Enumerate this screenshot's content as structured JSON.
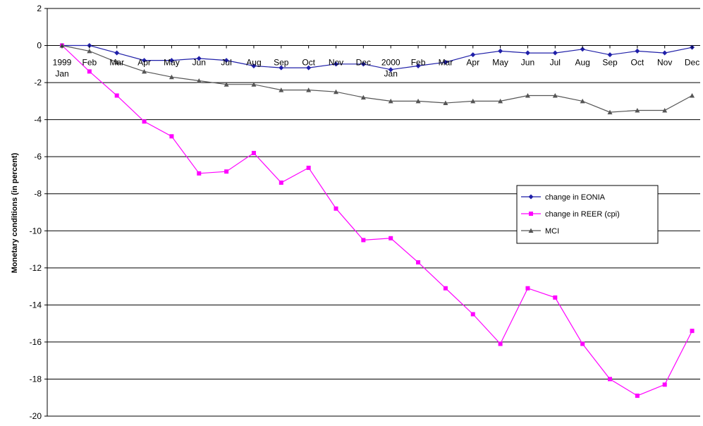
{
  "chart_data": {
    "type": "line",
    "title": "",
    "xlabel": "",
    "ylabel": "Monetary conditions (in percent)",
    "ylim": [
      -20,
      2
    ],
    "yticks": [
      2,
      0,
      -2,
      -4,
      -6,
      -8,
      -10,
      -12,
      -14,
      -16,
      -18,
      -20
    ],
    "grid": true,
    "legend_position": "right",
    "categories": [
      "Jan",
      "Feb",
      "Mar",
      "Apr",
      "May",
      "Jun",
      "Jul",
      "Aug",
      "Sep",
      "Oct",
      "Nov",
      "Dec",
      "Jan",
      "Feb",
      "Mar",
      "Apr",
      "May",
      "Jun",
      "Jul",
      "Aug",
      "Sep",
      "Oct",
      "Nov",
      "Dec"
    ],
    "year_labels": [
      {
        "index": 0,
        "label": "1999"
      },
      {
        "index": 12,
        "label": "2000"
      }
    ],
    "series": [
      {
        "name": "change in EONIA",
        "color": "#1f1fa8",
        "marker": "diamond",
        "values": [
          0,
          0,
          -0.4,
          -0.8,
          -0.8,
          -0.7,
          -0.8,
          -1.1,
          -1.2,
          -1.2,
          -1.0,
          -1.0,
          -1.3,
          -1.1,
          -0.9,
          -0.5,
          -0.3,
          -0.4,
          -0.4,
          -0.2,
          -0.5,
          -0.3,
          -0.4,
          -0.1
        ]
      },
      {
        "name": "change in REER (cpi)",
        "color": "#ff00ff",
        "marker": "square",
        "values": [
          0,
          -1.4,
          -2.7,
          -4.1,
          -4.9,
          -6.9,
          -6.8,
          -5.8,
          -7.4,
          -6.6,
          -8.8,
          -10.5,
          -10.4,
          -11.7,
          -13.1,
          -14.5,
          -16.1,
          -13.1,
          -13.6,
          -16.1,
          -18.0,
          -18.9,
          -18.3,
          -15.4
        ]
      },
      {
        "name": "MCI",
        "color": "#555555",
        "marker": "triangle",
        "values": [
          0,
          -0.3,
          -0.9,
          -1.4,
          -1.7,
          -1.9,
          -2.1,
          -2.1,
          -2.4,
          -2.4,
          -2.5,
          -2.8,
          -3.0,
          -3.0,
          -3.1,
          -3.0,
          -3.0,
          -2.7,
          -2.7,
          -3.0,
          -3.6,
          -3.5,
          -3.5,
          -2.7
        ]
      }
    ]
  }
}
